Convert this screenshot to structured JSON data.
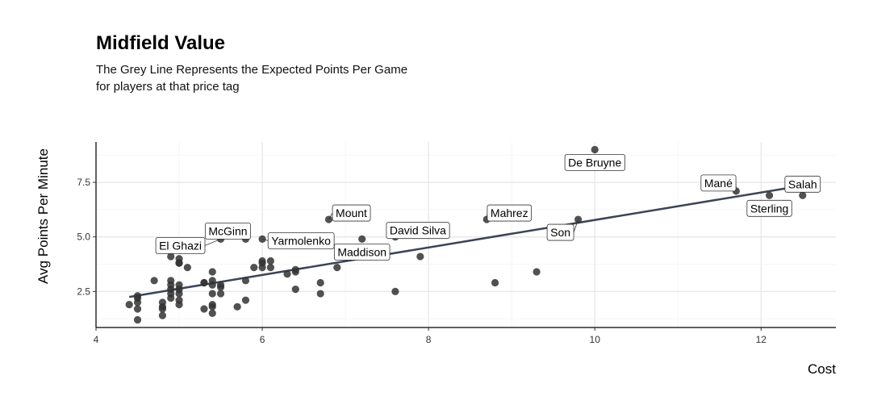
{
  "chart_data": {
    "type": "scatter",
    "title": "Midfield Value",
    "subtitle_lines": [
      "The Grey Line Represents the Expected Points Per Game",
      "for players at that price tag"
    ],
    "xlabel": "Cost",
    "ylabel": "Avg Points Per Minute",
    "xlim": [
      4,
      12.9
    ],
    "ylim": [
      0.85,
      9.35
    ],
    "xticks": [
      4,
      6,
      8,
      10,
      12
    ],
    "xtick_labels": [
      "4",
      "6",
      "8",
      "10",
      "12"
    ],
    "yticks": [
      2.5,
      5.0,
      7.5
    ],
    "ytick_labels": [
      "2.5",
      "5.0",
      "7.5"
    ],
    "grid": true,
    "point_color": "#333333",
    "line_color": "#3a4556",
    "trend_line": {
      "x": [
        4.4,
        12.5
      ],
      "y": [
        2.25,
        7.35
      ]
    },
    "points": [
      {
        "x": 4.4,
        "y": 1.9
      },
      {
        "x": 4.5,
        "y": 1.2
      },
      {
        "x": 4.5,
        "y": 1.7
      },
      {
        "x": 4.5,
        "y": 2.0
      },
      {
        "x": 4.5,
        "y": 2.2
      },
      {
        "x": 4.5,
        "y": 2.3
      },
      {
        "x": 4.7,
        "y": 3.0
      },
      {
        "x": 4.8,
        "y": 1.4
      },
      {
        "x": 4.8,
        "y": 1.7
      },
      {
        "x": 4.8,
        "y": 1.8
      },
      {
        "x": 4.8,
        "y": 2.0
      },
      {
        "x": 4.9,
        "y": 2.2
      },
      {
        "x": 4.9,
        "y": 2.4
      },
      {
        "x": 4.9,
        "y": 2.6
      },
      {
        "x": 4.9,
        "y": 2.8
      },
      {
        "x": 4.9,
        "y": 3.0
      },
      {
        "x": 4.9,
        "y": 4.1
      },
      {
        "x": 5.0,
        "y": 1.9
      },
      {
        "x": 5.0,
        "y": 2.1
      },
      {
        "x": 5.0,
        "y": 2.4
      },
      {
        "x": 5.0,
        "y": 2.6
      },
      {
        "x": 5.0,
        "y": 2.8
      },
      {
        "x": 5.0,
        "y": 3.8
      },
      {
        "x": 5.0,
        "y": 4.0
      },
      {
        "x": 5.0,
        "y": 3.8
      },
      {
        "x": 5.1,
        "y": 3.6
      },
      {
        "x": 5.3,
        "y": 1.7
      },
      {
        "x": 5.3,
        "y": 2.9
      },
      {
        "x": 5.3,
        "y": 2.9
      },
      {
        "x": 5.4,
        "y": 1.5
      },
      {
        "x": 5.4,
        "y": 1.8
      },
      {
        "x": 5.4,
        "y": 1.9
      },
      {
        "x": 5.4,
        "y": 2.4
      },
      {
        "x": 5.4,
        "y": 2.8
      },
      {
        "x": 5.4,
        "y": 3.0
      },
      {
        "x": 5.4,
        "y": 3.4
      },
      {
        "x": 5.5,
        "y": 2.4
      },
      {
        "x": 5.5,
        "y": 2.7
      },
      {
        "x": 5.5,
        "y": 2.8
      },
      {
        "x": 5.5,
        "y": 4.9
      },
      {
        "x": 5.7,
        "y": 1.8
      },
      {
        "x": 5.8,
        "y": 2.1
      },
      {
        "x": 5.8,
        "y": 3.0
      },
      {
        "x": 5.8,
        "y": 4.9
      },
      {
        "x": 5.9,
        "y": 3.6
      },
      {
        "x": 6.0,
        "y": 3.6
      },
      {
        "x": 6.0,
        "y": 3.8
      },
      {
        "x": 6.0,
        "y": 3.9
      },
      {
        "x": 6.0,
        "y": 4.9
      },
      {
        "x": 6.1,
        "y": 3.6
      },
      {
        "x": 6.1,
        "y": 3.9
      },
      {
        "x": 6.3,
        "y": 3.3
      },
      {
        "x": 6.4,
        "y": 2.6
      },
      {
        "x": 6.4,
        "y": 3.4
      },
      {
        "x": 6.4,
        "y": 3.5
      },
      {
        "x": 6.7,
        "y": 2.4
      },
      {
        "x": 6.7,
        "y": 2.9
      },
      {
        "x": 6.8,
        "y": 5.8
      },
      {
        "x": 6.9,
        "y": 3.6
      },
      {
        "x": 7.2,
        "y": 4.9
      },
      {
        "x": 7.6,
        "y": 2.5
      },
      {
        "x": 7.6,
        "y": 5.0
      },
      {
        "x": 7.9,
        "y": 4.1
      },
      {
        "x": 8.7,
        "y": 5.8
      },
      {
        "x": 8.8,
        "y": 2.9
      },
      {
        "x": 9.3,
        "y": 3.4
      },
      {
        "x": 9.8,
        "y": 5.8
      },
      {
        "x": 10.0,
        "y": 9.0
      },
      {
        "x": 11.7,
        "y": 7.1
      },
      {
        "x": 12.1,
        "y": 6.9
      },
      {
        "x": 12.5,
        "y": 6.9
      }
    ],
    "labels": [
      {
        "text": "De Bruyne",
        "x": 10.0,
        "y": 9.0,
        "pos": "below"
      },
      {
        "text": "Mané",
        "x": 11.7,
        "y": 7.1,
        "pos": "above-left"
      },
      {
        "text": "Salah",
        "x": 12.5,
        "y": 6.9,
        "pos": "above"
      },
      {
        "text": "Sterling",
        "x": 12.1,
        "y": 6.9,
        "pos": "below"
      },
      {
        "text": "Mount",
        "x": 6.8,
        "y": 5.8,
        "pos": "above-right"
      },
      {
        "text": "Mahrez",
        "x": 8.7,
        "y": 5.8,
        "pos": "above-right"
      },
      {
        "text": "Son",
        "x": 9.8,
        "y": 5.8,
        "pos": "below-left"
      },
      {
        "text": "David Silva",
        "x": 7.6,
        "y": 5.0,
        "pos": "above-right"
      },
      {
        "text": "McGinn",
        "x": 5.8,
        "y": 4.9,
        "pos": "above-left"
      },
      {
        "text": "Yarmolenko",
        "x": 6.0,
        "y": 4.9,
        "pos": "right"
      },
      {
        "text": "El Ghazi",
        "x": 5.5,
        "y": 4.9,
        "pos": "left"
      },
      {
        "text": "Maddison",
        "x": 7.2,
        "y": 4.9,
        "pos": "below"
      }
    ]
  }
}
